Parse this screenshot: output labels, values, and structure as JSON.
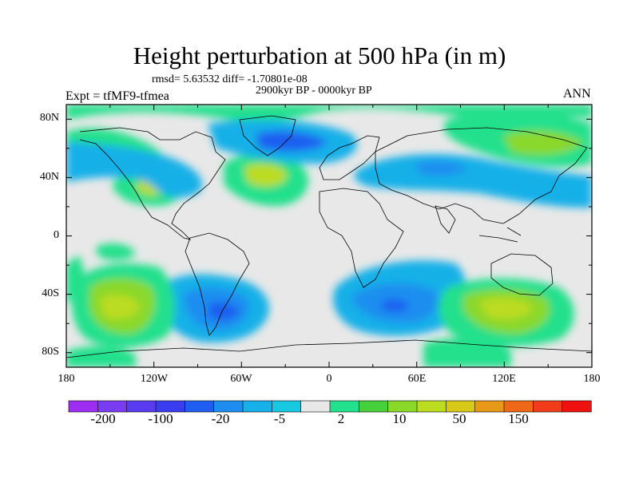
{
  "title": "Height perturbation at 500 hPa (in m)",
  "stats": "rmsd= 5.63532 diff= -1.70801e-08",
  "period": "2900kyr BP - 0000kyr BP",
  "experiment": "Expt = tfMF9-tfmea",
  "season": "ANN",
  "map": {
    "lat_labels": [
      "80N",
      "40N",
      "0",
      "40S",
      "80S"
    ],
    "lon_labels": [
      "180",
      "120W",
      "60W",
      "0",
      "60E",
      "120E",
      "180"
    ],
    "lat_range": [
      -90,
      90
    ],
    "lon_range": [
      -180,
      180
    ]
  },
  "colorbar": {
    "colors": [
      "#9d2df0",
      "#7a3cf0",
      "#5a3cf0",
      "#3a3cf0",
      "#1f5ef0",
      "#1d8ef0",
      "#17b0e8",
      "#18c8e0",
      "#e8e8e8",
      "#22e08c",
      "#46d03c",
      "#8ad82a",
      "#bcdc20",
      "#d8c818",
      "#e89818",
      "#ee6818",
      "#f03c18",
      "#ef1010"
    ],
    "labels": [
      "-200",
      "-100",
      "-20",
      "-5",
      "2",
      "10",
      "50",
      "150"
    ]
  },
  "colors": {
    "background": "#ffffff",
    "land_outline": "#000000",
    "neutral": "#e8e8e8"
  }
}
